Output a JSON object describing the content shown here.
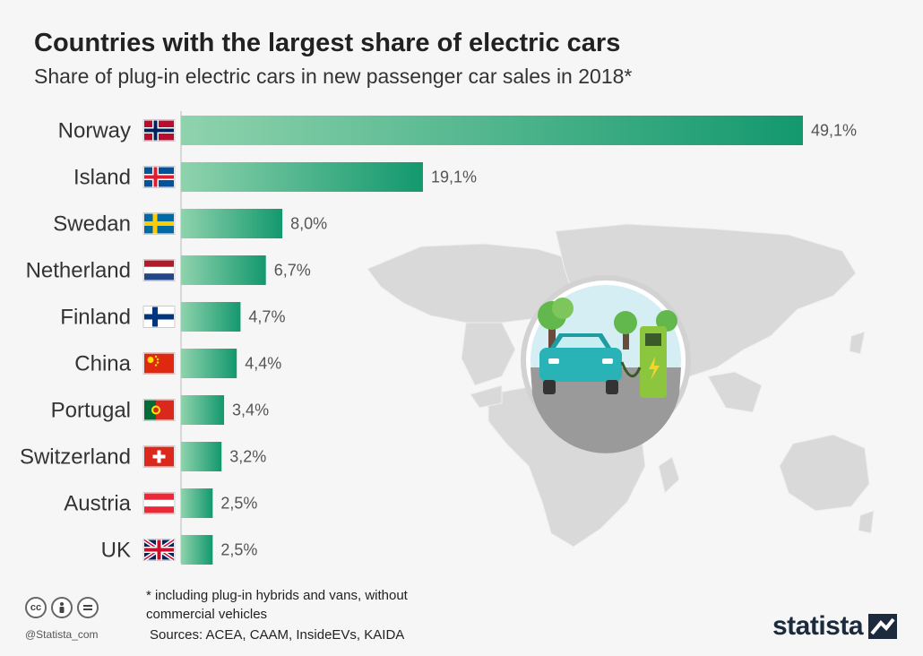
{
  "title": "Countries with the largest share of electric cars",
  "subtitle": "Share of plug-in electric cars in new passenger car sales in 2018*",
  "footnote": "* including plug-in hybrids and vans, without commercial vehicles",
  "sources": "Sources: ACEA, CAAM, InsideEVs, KAIDA",
  "handle": "@Statista_com",
  "brand": "statista",
  "colors": {
    "bar_start": "#8fd3ad",
    "bar_end": "#13986e",
    "background": "#f6f6f6",
    "map": "#d9d9d9"
  },
  "chart_data": {
    "type": "bar",
    "orientation": "horizontal",
    "categories": [
      "Norway",
      "Island",
      "Swedan",
      "Netherland",
      "Finland",
      "China",
      "Portugal",
      "Switzerland",
      "Austria",
      "UK"
    ],
    "values": [
      49.1,
      19.1,
      8.0,
      6.7,
      4.7,
      4.4,
      3.4,
      3.2,
      2.5,
      2.5
    ],
    "value_labels": [
      "49,1%",
      "19,1%",
      "8,0%",
      "6,7%",
      "4,7%",
      "4,4%",
      "3,4%",
      "3,2%",
      "2,5%",
      "2,5%"
    ],
    "flags": [
      "norway-flag-icon",
      "iceland-flag-icon",
      "sweden-flag-icon",
      "netherlands-flag-icon",
      "finland-flag-icon",
      "china-flag-icon",
      "portugal-flag-icon",
      "switzerland-flag-icon",
      "austria-flag-icon",
      "uk-flag-icon"
    ],
    "title": "Countries with the largest share of electric cars",
    "xlabel": "",
    "ylabel": "",
    "xlim": [
      0,
      49.1
    ],
    "grid": false,
    "legend": "none"
  }
}
